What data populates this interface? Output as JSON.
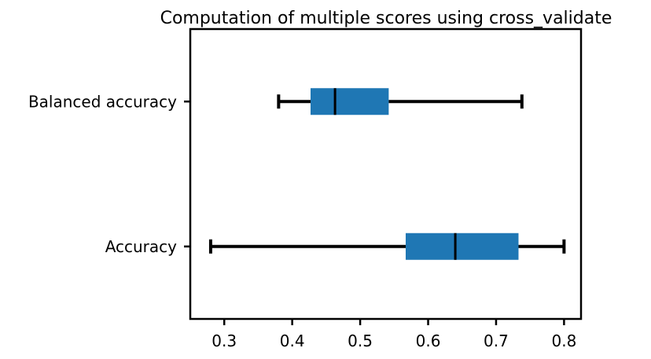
{
  "chart_data": {
    "type": "boxplot",
    "orientation": "horizontal",
    "title": "Computation of multiple scores using cross_validate",
    "xlabel": "",
    "ylabel": "",
    "xlim": [
      0.25,
      0.825
    ],
    "xticks": [
      "0.3",
      "0.4",
      "0.5",
      "0.6",
      "0.7",
      "0.8"
    ],
    "box_color": "#1f77b4",
    "median_color": "#000000",
    "whisker_color": "#000000",
    "grid": false,
    "categories": [
      "Accuracy",
      "Balanced accuracy"
    ],
    "boxes": [
      {
        "name": "Accuracy",
        "whislo": 0.28,
        "q1": 0.567,
        "med": 0.64,
        "q3": 0.733,
        "whishi": 0.8
      },
      {
        "name": "Balanced accuracy",
        "whislo": 0.38,
        "q1": 0.427,
        "med": 0.463,
        "q3": 0.542,
        "whishi": 0.738
      }
    ]
  }
}
